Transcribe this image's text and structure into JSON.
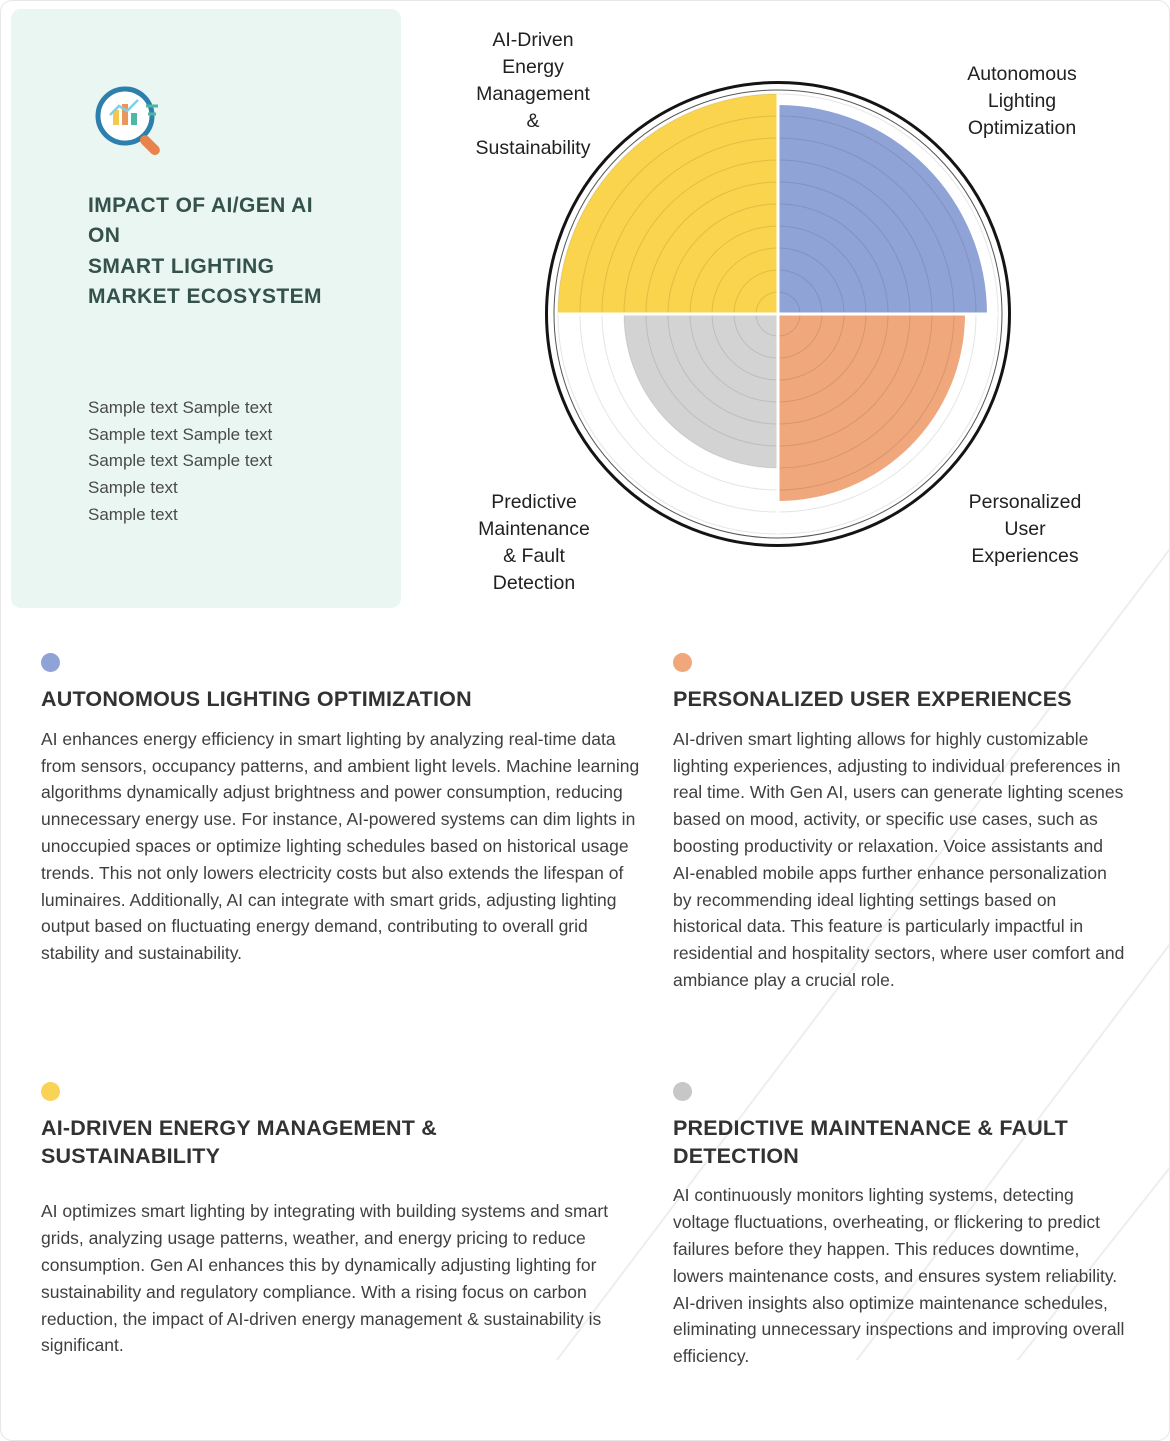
{
  "panel": {
    "title": "IMPACT OF AI/GEN AI ON\nSMART LIGHTING\nMARKET ECOSYSTEM",
    "sample_text": "Sample text Sample text Sample text Sample text Sample text Sample text\nSample text\nSample text",
    "icon": "magnifier-chart-icon"
  },
  "chart_data": {
    "type": "pie",
    "variant": "quadrant-radial",
    "title": "Impact of AI/Gen AI on Smart Lighting Market Ecosystem",
    "categories": [
      "AI-Driven Energy Management & Sustainability",
      "Autonomous Lighting Optimization",
      "Personalized User Experiences",
      "Predictive Maintenance & Fault Detection"
    ],
    "values": [
      1.0,
      0.95,
      0.85,
      0.7
    ],
    "colors": [
      "#F9D44C",
      "#8FA3D6",
      "#F0A77B",
      "#D3D3D3"
    ],
    "start_deg": [
      180,
      270,
      0,
      90
    ],
    "grid": true,
    "rings": 10,
    "legend_position": "around",
    "labels": {
      "top_left": "AI-Driven\nEnergy\nManagement\n&\nSustainability",
      "top_right": "Autonomous\nLighting\nOptimization",
      "bottom_left": "Predictive\nMaintenance\n& Fault\nDetection",
      "bottom_right": "Personalized\nUser\nExperiences"
    }
  },
  "sections": [
    {
      "color": "#8FA3D6",
      "title": "AUTONOMOUS LIGHTING OPTIMIZATION",
      "body": "AI enhances energy efficiency in smart lighting by analyzing real-time data from sensors, occupancy patterns, and ambient light levels. Machine learning algorithms dynamically adjust brightness and power consumption, reducing unnecessary energy use. For instance, AI-powered systems can dim lights in unoccupied spaces or optimize lighting schedules based on historical usage trends. This not only lowers electricity costs but also extends the lifespan of luminaires. Additionally, AI can integrate with smart grids, adjusting lighting output based on fluctuating energy demand, contributing to overall grid stability and sustainability."
    },
    {
      "color": "#F0A77B",
      "title": "PERSONALIZED USER EXPERIENCES",
      "body": "AI-driven smart lighting allows for highly customizable lighting experiences, adjusting to individual preferences in real time. With Gen AI, users can generate lighting scenes based on mood, activity, or specific use cases, such as boosting productivity or relaxation. Voice assistants and AI-enabled mobile apps further enhance personalization by recommending ideal lighting settings based on historical data. This feature is particularly impactful in residential and hospitality sectors, where user comfort and ambiance play a crucial role."
    },
    {
      "color": "#F8D355",
      "title": "AI-DRIVEN ENERGY MANAGEMENT & SUSTAINABILITY",
      "body": "AI optimizes smart lighting by integrating with building systems and smart grids, analyzing usage patterns, weather, and energy pricing to reduce consumption. Gen AI enhances this by dynamically adjusting lighting for sustainability and regulatory compliance. With a rising focus on carbon reduction, the impact of AI-driven energy management & sustainability is significant."
    },
    {
      "color": "#C7C7C7",
      "title": "PREDICTIVE MAINTENANCE & FAULT DETECTION",
      "body": "AI continuously monitors lighting systems, detecting voltage fluctuations, overheating, or flickering to predict failures before they happen. This reduces downtime, lowers maintenance costs, and ensures system reliability. AI-driven insights also optimize maintenance schedules, eliminating unnecessary inspections and improving overall efficiency."
    }
  ]
}
